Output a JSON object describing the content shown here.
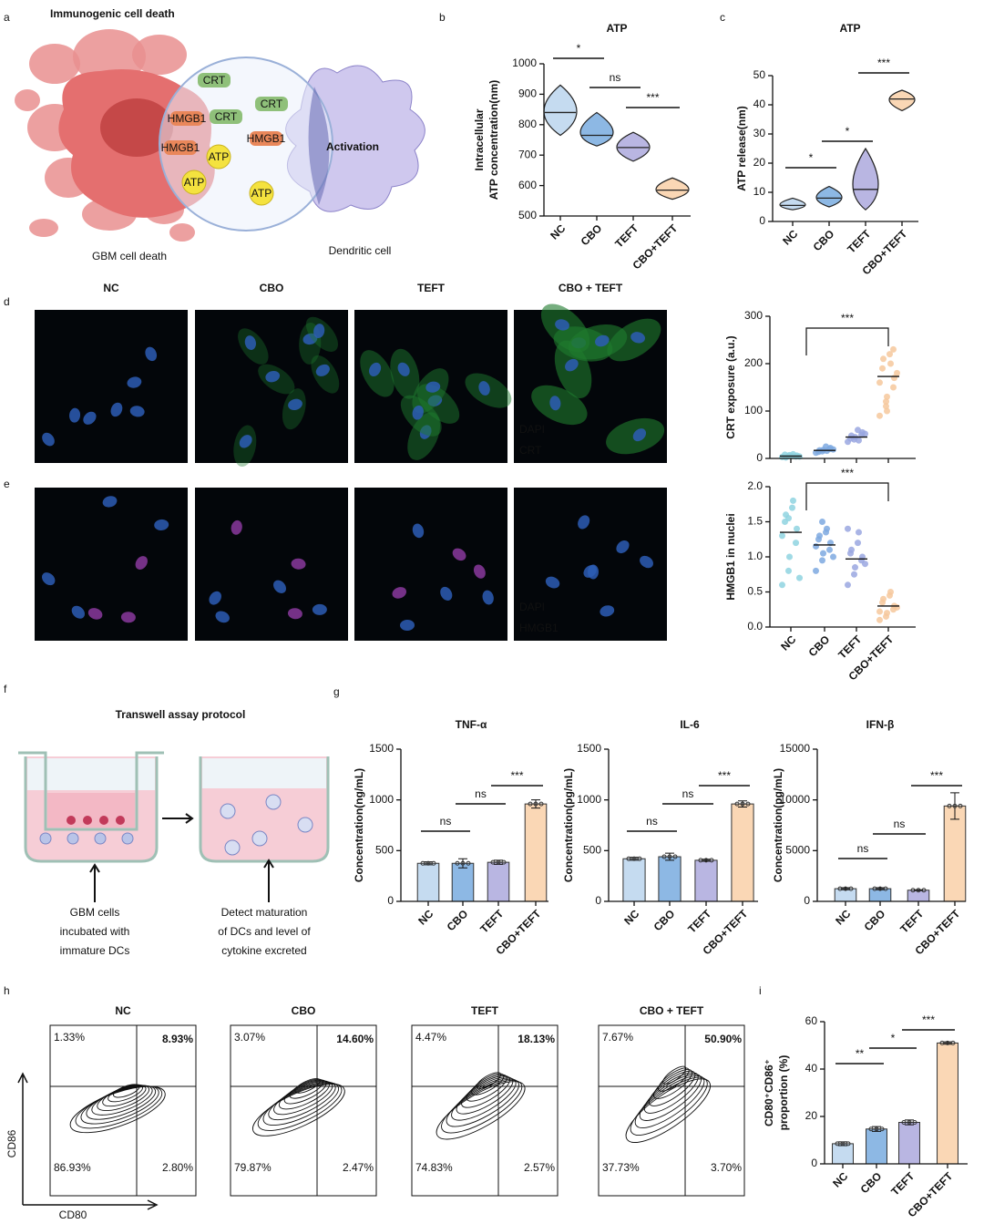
{
  "panel_labels": [
    "a",
    "b",
    "c",
    "d",
    "e",
    "f",
    "g",
    "h",
    "i"
  ],
  "diagram_a": {
    "title": "Immunogenic cell death",
    "tags": [
      "CRT",
      "CRT",
      "CRT",
      "HMGB1",
      "HMGB1",
      "HMGB1",
      "ATP",
      "ATP",
      "ATP"
    ],
    "activation": "Activation",
    "left_caption": "GBM cell death",
    "right_caption": "Dendritic cell"
  },
  "microscopy": {
    "columns": [
      "NC",
      "CBO",
      "TEFT",
      "CBO + TEFT"
    ],
    "rows": [
      [
        "DAPI",
        "CRT"
      ],
      [
        "DAPI",
        "HMGB1"
      ]
    ]
  },
  "diagram_f": {
    "title": "Transwell assay protocol",
    "left_caption": [
      "GBM cells",
      "incubated with",
      "immature DCs"
    ],
    "right_caption": [
      "Detect maturation",
      "of DCs and level of",
      "cytokine excreted"
    ]
  },
  "flow": {
    "x_label": "CD80",
    "y_label": "CD86",
    "plots": [
      {
        "title": "NC",
        "quadrants": [
          "1.33%",
          "8.93%",
          "86.93%",
          "2.80%"
        ]
      },
      {
        "title": "CBO",
        "quadrants": [
          "3.07%",
          "14.60%",
          "79.87%",
          "2.47%"
        ]
      },
      {
        "title": "TEFT",
        "quadrants": [
          "4.47%",
          "18.13%",
          "74.83%",
          "2.57%"
        ]
      },
      {
        "title": "CBO + TEFT",
        "quadrants": [
          "7.67%",
          "50.90%",
          "37.73%",
          "3.70%"
        ]
      }
    ]
  },
  "chart_data": [
    {
      "type": "violin",
      "title": "ATP",
      "ylabel": [
        "Intracellular",
        "ATP concentration(nm)"
      ],
      "categories": [
        "NC",
        "CBO",
        "TEFT",
        "CBO+TEFT"
      ],
      "values": [
        840,
        765,
        725,
        585
      ],
      "min": [
        765,
        730,
        680,
        555
      ],
      "max": [
        930,
        840,
        775,
        625
      ],
      "colors": [
        "#c5dbf0",
        "#8db8e4",
        "#b9b6e2",
        "#fad7b5"
      ],
      "ylim": [
        500,
        1000
      ],
      "yticks": [
        500,
        600,
        700,
        800,
        900,
        1000
      ],
      "annotations": [
        "*",
        "ns",
        "***"
      ]
    },
    {
      "type": "violin",
      "title": "ATP",
      "ylabel": [
        "ATP release(nm)"
      ],
      "categories": [
        "NC",
        "CBO",
        "TEFT",
        "CBO+TEFT"
      ],
      "values": [
        5.5,
        8,
        11,
        42
      ],
      "min": [
        4,
        5,
        4,
        38
      ],
      "max": [
        8,
        12,
        25,
        45
      ],
      "colors": [
        "#c5dbf0",
        "#8db8e4",
        "#b9b6e2",
        "#fad7b5"
      ],
      "ylim": [
        0,
        50
      ],
      "yticks": [
        0,
        10,
        20,
        30,
        40,
        50
      ],
      "annotations": [
        "*",
        "*",
        "***"
      ]
    },
    {
      "type": "scatter",
      "ylabel": [
        "CRT exposure (a.u.)"
      ],
      "categories": [
        null,
        null,
        null,
        null
      ],
      "values": [
        5,
        17,
        45,
        173
      ],
      "points": [
        [
          3,
          5,
          7,
          4,
          6,
          8,
          2,
          5,
          9,
          4
        ],
        [
          12,
          15,
          18,
          20,
          22,
          14,
          17,
          25,
          16,
          19
        ],
        [
          35,
          40,
          45,
          50,
          55,
          42,
          48,
          60,
          38,
          52
        ],
        [
          90,
          110,
          130,
          150,
          170,
          190,
          210,
          220,
          200,
          180,
          160,
          120,
          100,
          230
        ]
      ],
      "colors": [
        "#8fd3e0",
        "#7ea9e0",
        "#9aa7e0",
        "#f6c89c"
      ],
      "ylim": [
        0,
        300
      ],
      "yticks": [
        0,
        100,
        200,
        300
      ],
      "annotations": [
        "***"
      ]
    },
    {
      "type": "scatter",
      "ylabel": [
        "HMGB1 in nuclei"
      ],
      "categories": [
        "NC",
        "CBO",
        "TEFT",
        "CBO+TEFT"
      ],
      "values": [
        1.35,
        1.17,
        0.97,
        0.3
      ],
      "points": [
        [
          0.6,
          0.8,
          1.0,
          1.2,
          1.4,
          1.5,
          1.6,
          1.7,
          1.8,
          0.7,
          1.3,
          1.55
        ],
        [
          0.8,
          0.95,
          1.05,
          1.1,
          1.2,
          1.25,
          1.3,
          1.35,
          1.4,
          1.0,
          1.15,
          1.5
        ],
        [
          0.6,
          0.75,
          0.85,
          0.95,
          1.0,
          1.05,
          1.1,
          1.2,
          1.35,
          0.9,
          1.4
        ],
        [
          0.1,
          0.15,
          0.2,
          0.25,
          0.3,
          0.35,
          0.4,
          0.45,
          0.5,
          0.28,
          0.22
        ]
      ],
      "colors": [
        "#8fd3e0",
        "#7ea9e0",
        "#9aa7e0",
        "#f6c89c"
      ],
      "ylim": [
        0,
        2
      ],
      "yticks": [
        {
          "value": 0,
          "label": "0.0"
        },
        0.5,
        {
          "value": 1,
          "label": "1.0"
        },
        1.5,
        {
          "value": 2,
          "label": "2.0"
        }
      ],
      "annotations": [
        "***"
      ]
    },
    {
      "type": "bar",
      "title": "TNF-α",
      "ylabel": [
        "Concentration(ng/mL)"
      ],
      "categories": [
        "NC",
        "CBO",
        "TEFT",
        "CBO+TEFT"
      ],
      "values": [
        375,
        375,
        385,
        960
      ],
      "errors": [
        15,
        45,
        20,
        40
      ],
      "colors": [
        "#c5dbf0",
        "#8db8e4",
        "#b9b6e2",
        "#fad7b5"
      ],
      "ylim": [
        0,
        1500
      ],
      "yticks": [
        0,
        500,
        1000,
        1500
      ],
      "annotations": [
        "ns",
        "ns",
        "***"
      ]
    },
    {
      "type": "bar",
      "title": "IL-6",
      "ylabel": [
        "Concentration(pg/mL)"
      ],
      "categories": [
        "NC",
        "CBO",
        "TEFT",
        "CBO+TEFT"
      ],
      "values": [
        420,
        440,
        405,
        960
      ],
      "errors": [
        15,
        35,
        10,
        30
      ],
      "colors": [
        "#c5dbf0",
        "#8db8e4",
        "#b9b6e2",
        "#fad7b5"
      ],
      "ylim": [
        0,
        1500
      ],
      "yticks": [
        0,
        500,
        1000,
        1500
      ],
      "annotations": [
        "ns",
        "ns",
        "***"
      ]
    },
    {
      "type": "bar",
      "title": "IFN-β",
      "ylabel": [
        "Concentration(pg/mL)"
      ],
      "categories": [
        "NC",
        "CBO",
        "TEFT",
        "CBO+TEFT"
      ],
      "values": [
        1250,
        1250,
        1100,
        9400
      ],
      "errors": [
        100,
        100,
        50,
        1300
      ],
      "colors": [
        "#c5dbf0",
        "#8db8e4",
        "#b9b6e2",
        "#fad7b5"
      ],
      "ylim": [
        0,
        15000
      ],
      "yticks": [
        0,
        5000,
        10000,
        15000
      ],
      "annotations": [
        "ns",
        "ns",
        "***"
      ]
    },
    {
      "type": "bar",
      "ylabel": [
        "CD80⁺CD86⁺",
        "proportion (%)"
      ],
      "categories": [
        "NC",
        "CBO",
        "TEFT",
        "CBO+TEFT"
      ],
      "values": [
        8.5,
        14.7,
        17.5,
        51
      ],
      "errors": [
        0.8,
        1,
        1,
        0.5
      ],
      "colors": [
        "#c5dbf0",
        "#8db8e4",
        "#b9b6e2",
        "#fad7b5"
      ],
      "ylim": [
        0,
        60
      ],
      "yticks": [
        0,
        20,
        40,
        60
      ],
      "annotations": [
        "**",
        "*",
        "***"
      ]
    }
  ]
}
